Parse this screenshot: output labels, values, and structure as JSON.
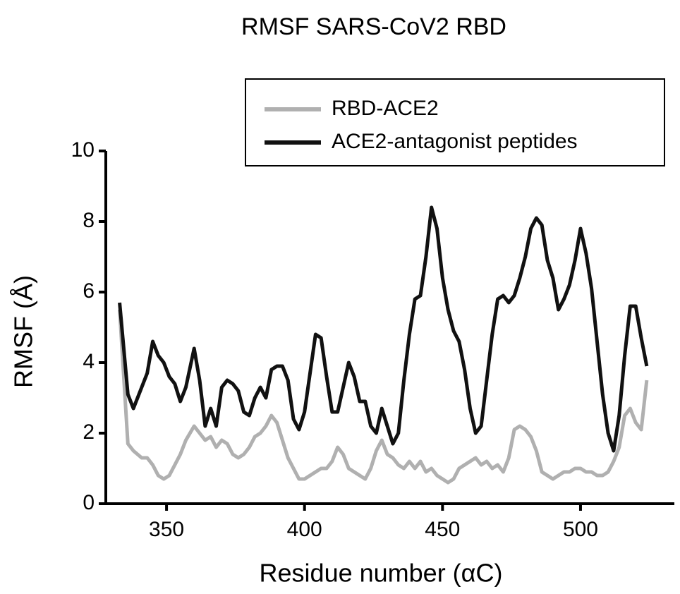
{
  "chart_data": {
    "type": "line",
    "title": "RMSF SARS-CoV2 RBD",
    "x_label": "Residue number (αC)",
    "y_label": "RMSF (Å)",
    "x": [
      333,
      336,
      338,
      341,
      343,
      345,
      347,
      349,
      351,
      353,
      355,
      357,
      360,
      362,
      364,
      366,
      368,
      370,
      372,
      374,
      376,
      378,
      380,
      382,
      384,
      386,
      388,
      390,
      392,
      394,
      396,
      398,
      400,
      402,
      404,
      406,
      408,
      410,
      412,
      414,
      416,
      418,
      420,
      422,
      424,
      426,
      428,
      430,
      432,
      434,
      436,
      438,
      440,
      442,
      444,
      446,
      448,
      450,
      452,
      454,
      456,
      458,
      460,
      462,
      464,
      466,
      468,
      470,
      472,
      474,
      476,
      478,
      480,
      482,
      484,
      486,
      488,
      490,
      492,
      494,
      496,
      498,
      500,
      502,
      504,
      506,
      508,
      510,
      512,
      514,
      516,
      518,
      520,
      522,
      524
    ],
    "series": [
      {
        "name": "RBD-ACE2",
        "color": "#b0b0b0",
        "values": [
          5.5,
          1.7,
          1.5,
          1.3,
          1.3,
          1.1,
          0.8,
          0.7,
          0.8,
          1.1,
          1.4,
          1.8,
          2.2,
          2.0,
          1.8,
          1.9,
          1.6,
          1.8,
          1.7,
          1.4,
          1.3,
          1.4,
          1.6,
          1.9,
          2.0,
          2.2,
          2.5,
          2.3,
          1.8,
          1.3,
          1.0,
          0.7,
          0.7,
          0.8,
          0.9,
          1.0,
          1.0,
          1.2,
          1.6,
          1.4,
          1.0,
          0.9,
          0.8,
          0.7,
          1.0,
          1.5,
          1.8,
          1.4,
          1.3,
          1.1,
          1.0,
          1.2,
          1.0,
          1.2,
          0.9,
          1.0,
          0.8,
          0.7,
          0.6,
          0.7,
          1.0,
          1.1,
          1.2,
          1.3,
          1.1,
          1.2,
          1.0,
          1.1,
          0.9,
          1.3,
          2.1,
          2.2,
          2.1,
          1.9,
          1.5,
          0.9,
          0.8,
          0.7,
          0.8,
          0.9,
          0.9,
          1.0,
          1.0,
          0.9,
          0.9,
          0.8,
          0.8,
          0.9,
          1.2,
          1.6,
          2.5,
          2.7,
          2.3,
          2.1,
          3.5
        ]
      },
      {
        "name": "ACE2-antagonist peptides",
        "color": "#111111",
        "values": [
          5.7,
          3.1,
          2.7,
          3.3,
          3.7,
          4.6,
          4.2,
          4.0,
          3.6,
          3.4,
          2.9,
          3.3,
          4.4,
          3.5,
          2.2,
          2.7,
          2.2,
          3.3,
          3.5,
          3.4,
          3.2,
          2.6,
          2.5,
          3.0,
          3.3,
          3.0,
          3.8,
          3.9,
          3.9,
          3.5,
          2.4,
          2.1,
          2.6,
          3.7,
          4.8,
          4.7,
          3.6,
          2.6,
          2.6,
          3.3,
          4.0,
          3.6,
          2.9,
          2.9,
          2.2,
          2.0,
          2.7,
          2.2,
          1.7,
          2.0,
          3.5,
          4.8,
          5.8,
          5.9,
          7.0,
          8.4,
          7.8,
          6.4,
          5.5,
          4.9,
          4.6,
          3.8,
          2.7,
          2.0,
          2.2,
          3.5,
          4.8,
          5.8,
          5.9,
          5.7,
          5.9,
          6.4,
          7.0,
          7.8,
          8.1,
          7.9,
          6.9,
          6.4,
          5.5,
          5.8,
          6.2,
          6.9,
          7.8,
          7.1,
          6.1,
          4.6,
          3.1,
          2.0,
          1.5,
          2.5,
          4.2,
          5.6,
          5.6,
          4.7,
          3.9
        ]
      }
    ],
    "xlim": [
      328,
      534
    ],
    "ylim": [
      0,
      10
    ],
    "xticks": [
      350,
      400,
      450,
      500
    ],
    "yticks": [
      0,
      2,
      4,
      6,
      8,
      10
    ],
    "legend": "top-right"
  }
}
